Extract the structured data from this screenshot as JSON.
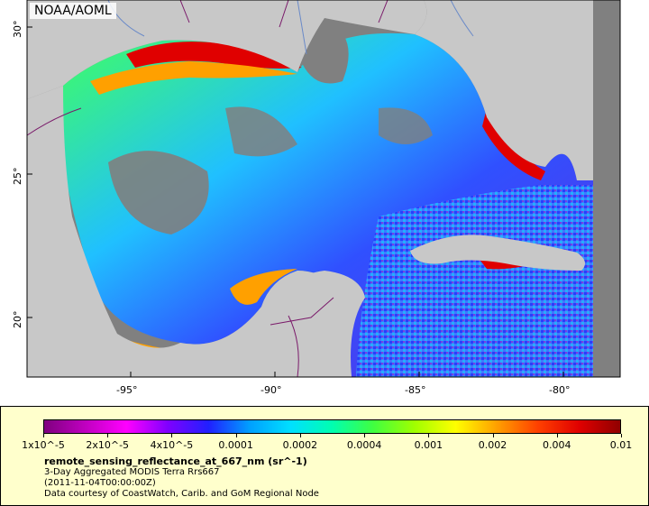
{
  "credit": "NOAA/AOML",
  "map": {
    "lat_ticks": [
      "30°",
      "25°",
      "20°"
    ],
    "lon_ticks": [
      "-95°",
      "-90°",
      "-85°",
      "-80°"
    ],
    "colors": {
      "land": "#c8c8c8",
      "no_data": "#808080",
      "border": "#7a1a6a",
      "river": "#6a8ac8"
    }
  },
  "legend": {
    "colorbar_colors": [
      "#7f007f",
      "#c000c0",
      "#ff00ff",
      "#8000ff",
      "#2020ff",
      "#00a0ff",
      "#00e0ff",
      "#00ffb0",
      "#40ff40",
      "#a0ff00",
      "#ffff00",
      "#ffa000",
      "#ff4000",
      "#e00000",
      "#900000"
    ],
    "labels": [
      "1x10^-5",
      "2x10^-5",
      "4x10^-5",
      "0.0001",
      "0.0002",
      "0.0004",
      "0.001",
      "0.002",
      "0.004",
      "0.01"
    ],
    "variable": "remote_sensing_reflectance_at_667_nm (sr^-1)",
    "description": "3-Day Aggregated MODIS Terra Rrs667",
    "timestamp": "(2011-11-04T00:00:00Z)",
    "source": "Data courtesy of CoastWatch, Carib. and GoM Regional Node"
  }
}
